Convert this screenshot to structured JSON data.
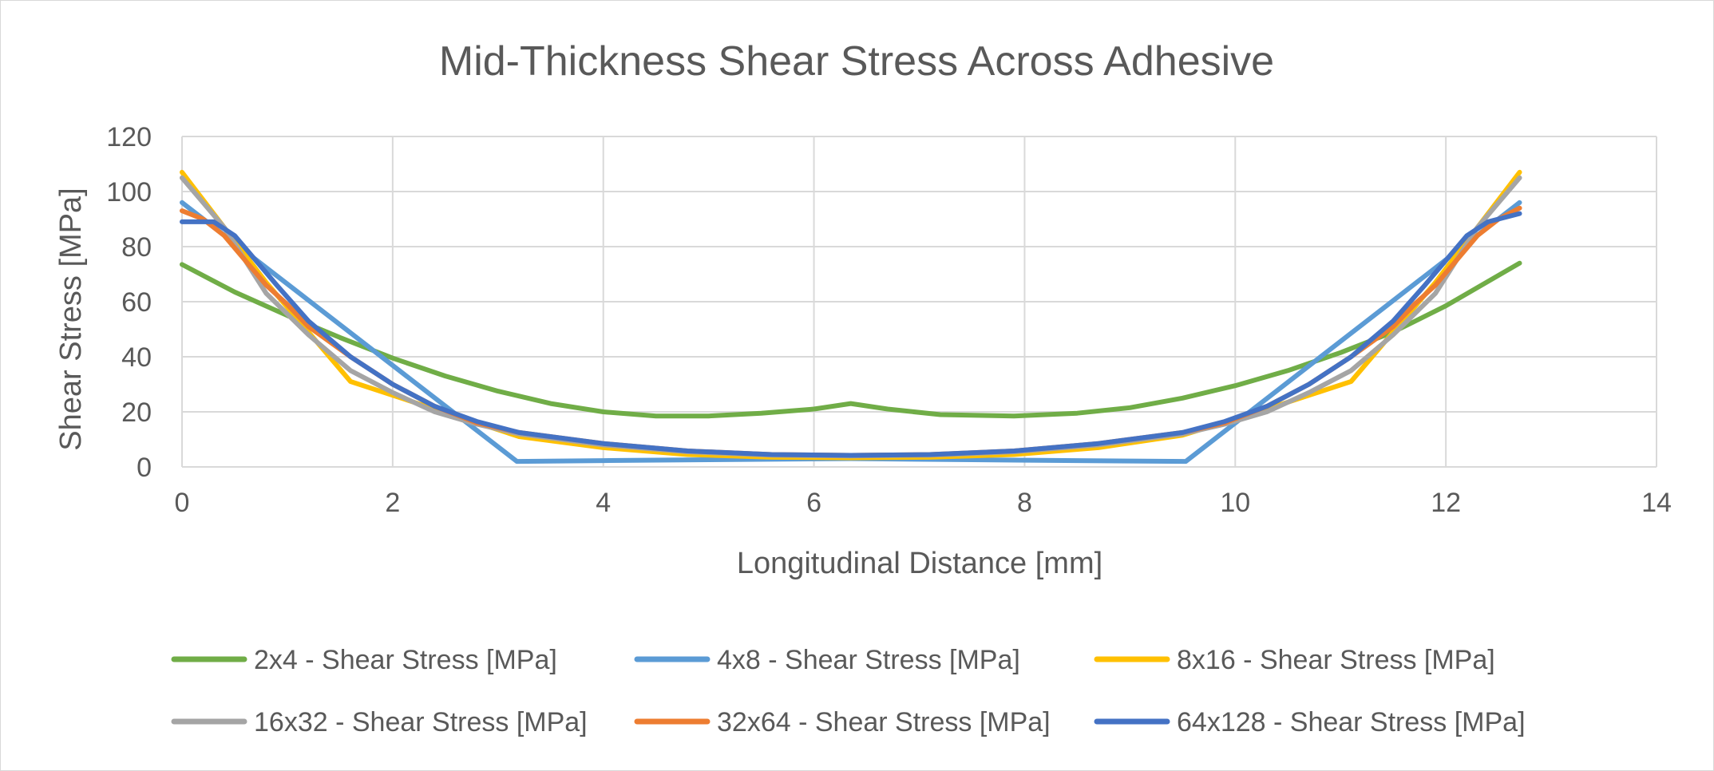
{
  "chart_data": {
    "type": "line",
    "title": "Mid-Thickness Shear Stress Across Adhesive",
    "xlabel": "Longitudinal Distance [mm]",
    "ylabel": "Shear Stress [MPa]",
    "xlim": [
      0,
      14
    ],
    "ylim": [
      0,
      120
    ],
    "xticks": [
      0,
      2,
      4,
      6,
      8,
      10,
      12,
      14
    ],
    "yticks": [
      0,
      20,
      40,
      60,
      80,
      100,
      120
    ],
    "grid": true,
    "legend_position": "bottom",
    "series": [
      {
        "name": "2x4 - Shear Stress [MPa]",
        "color": "#70ad47",
        "points": [
          [
            0,
            73.5
          ],
          [
            0.5,
            63.5
          ],
          [
            1,
            55
          ],
          [
            1.5,
            47
          ],
          [
            2,
            39.5
          ],
          [
            2.5,
            33
          ],
          [
            3,
            27.5
          ],
          [
            3.5,
            23
          ],
          [
            4,
            20
          ],
          [
            4.5,
            18.5
          ],
          [
            5,
            18.5
          ],
          [
            5.5,
            19.5
          ],
          [
            6,
            21
          ],
          [
            6.35,
            23
          ],
          [
            6.7,
            21
          ],
          [
            7.2,
            19
          ],
          [
            7.9,
            18.5
          ],
          [
            8.5,
            19.5
          ],
          [
            9,
            21.5
          ],
          [
            9.5,
            25
          ],
          [
            10,
            29.5
          ],
          [
            10.5,
            35
          ],
          [
            11,
            41.5
          ],
          [
            11.5,
            49
          ],
          [
            12,
            58.5
          ],
          [
            12.7,
            74
          ]
        ]
      },
      {
        "name": "4x8 - Shear Stress [MPa]",
        "color": "#5b9bd5",
        "points": [
          [
            0,
            96
          ],
          [
            3.18,
            2
          ],
          [
            4,
            2.3
          ],
          [
            5,
            2.6
          ],
          [
            6.35,
            3
          ],
          [
            7.5,
            2.6
          ],
          [
            8.5,
            2.3
          ],
          [
            9.53,
            2
          ],
          [
            12.7,
            96
          ]
        ]
      },
      {
        "name": "8x16 - Shear Stress [MPa]",
        "color": "#ffc000",
        "points": [
          [
            0,
            107
          ],
          [
            0.8,
            67
          ],
          [
            1.6,
            31
          ],
          [
            2.4,
            21
          ],
          [
            3.2,
            11
          ],
          [
            4,
            7
          ],
          [
            4.8,
            4.5
          ],
          [
            5.6,
            3.5
          ],
          [
            6.35,
            3.3
          ],
          [
            7.1,
            3.5
          ],
          [
            7.9,
            4.5
          ],
          [
            8.7,
            7
          ],
          [
            9.5,
            11.5
          ],
          [
            10.3,
            21
          ],
          [
            11.1,
            31
          ],
          [
            11.9,
            67
          ],
          [
            12.7,
            107
          ]
        ]
      },
      {
        "name": "16x32 - Shear Stress [MPa]",
        "color": "#a5a5a5",
        "points": [
          [
            0,
            105
          ],
          [
            0.4,
            87
          ],
          [
            0.8,
            63
          ],
          [
            1.2,
            48
          ],
          [
            1.6,
            35
          ],
          [
            2,
            27
          ],
          [
            2.4,
            20
          ],
          [
            2.8,
            15.5
          ],
          [
            3.2,
            12
          ],
          [
            4,
            8
          ],
          [
            4.8,
            5.5
          ],
          [
            5.6,
            4.3
          ],
          [
            6.35,
            4
          ],
          [
            7.1,
            4.3
          ],
          [
            7.9,
            5.5
          ],
          [
            8.7,
            8
          ],
          [
            9.5,
            12
          ],
          [
            9.9,
            15.5
          ],
          [
            10.3,
            20
          ],
          [
            10.7,
            27
          ],
          [
            11.1,
            35
          ],
          [
            11.5,
            48
          ],
          [
            11.9,
            63
          ],
          [
            12.3,
            87
          ],
          [
            12.7,
            105
          ]
        ]
      },
      {
        "name": "32x64 - Shear Stress [MPa]",
        "color": "#ed7d31",
        "points": [
          [
            0,
            93
          ],
          [
            0.2,
            90
          ],
          [
            0.4,
            84
          ],
          [
            0.6,
            75
          ],
          [
            0.8,
            66
          ],
          [
            1,
            59
          ],
          [
            1.2,
            51
          ],
          [
            1.6,
            40
          ],
          [
            2,
            30
          ],
          [
            2.4,
            22
          ],
          [
            2.8,
            16
          ],
          [
            3.2,
            12.5
          ],
          [
            4,
            8.5
          ],
          [
            4.8,
            5.8
          ],
          [
            5.6,
            4.5
          ],
          [
            6.35,
            4.2
          ],
          [
            7.1,
            4.5
          ],
          [
            7.9,
            5.8
          ],
          [
            8.7,
            8.5
          ],
          [
            9.5,
            12.5
          ],
          [
            9.9,
            16
          ],
          [
            10.3,
            22
          ],
          [
            10.7,
            30
          ],
          [
            11.1,
            40
          ],
          [
            11.5,
            51
          ],
          [
            11.7,
            59
          ],
          [
            11.9,
            66
          ],
          [
            12.1,
            75
          ],
          [
            12.3,
            84
          ],
          [
            12.5,
            90
          ],
          [
            12.7,
            94
          ]
        ]
      },
      {
        "name": "64x128 - Shear Stress [MPa]",
        "color": "#4472c4",
        "points": [
          [
            0,
            89
          ],
          [
            0.3,
            89
          ],
          [
            0.5,
            84
          ],
          [
            0.7,
            75
          ],
          [
            0.9,
            66
          ],
          [
            1.2,
            53
          ],
          [
            1.6,
            40
          ],
          [
            2,
            30
          ],
          [
            2.4,
            22
          ],
          [
            2.8,
            16.5
          ],
          [
            3.2,
            12.5
          ],
          [
            4,
            8.5
          ],
          [
            4.8,
            5.8
          ],
          [
            5.6,
            4.5
          ],
          [
            6.35,
            4.2
          ],
          [
            7.1,
            4.5
          ],
          [
            7.9,
            5.8
          ],
          [
            8.7,
            8.5
          ],
          [
            9.5,
            12.5
          ],
          [
            9.9,
            16.5
          ],
          [
            10.3,
            22
          ],
          [
            10.7,
            30
          ],
          [
            11.1,
            40
          ],
          [
            11.5,
            53
          ],
          [
            11.8,
            66
          ],
          [
            12,
            75
          ],
          [
            12.2,
            84
          ],
          [
            12.4,
            89
          ],
          [
            12.7,
            92
          ]
        ]
      }
    ]
  }
}
